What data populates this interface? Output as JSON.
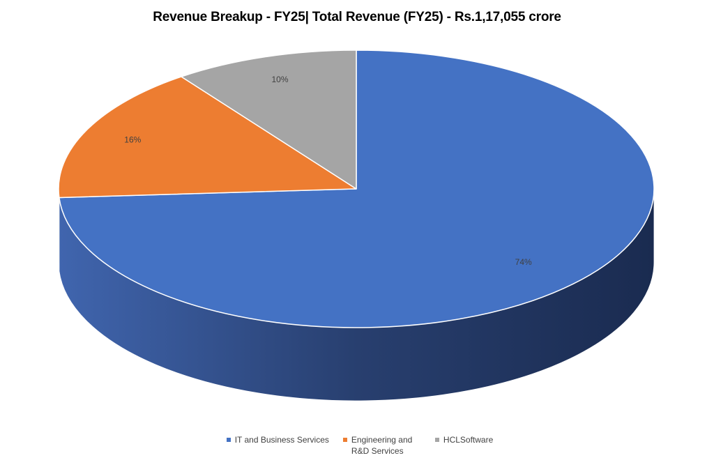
{
  "chart_data": {
    "type": "pie",
    "title": "Revenue Breakup - FY25| Total Revenue (FY25) - Rs.1,17,055 crore",
    "categories": [
      "IT and Business Services",
      "Engineering and R&D Services",
      "HCLSoftware"
    ],
    "values": [
      74,
      16,
      10
    ],
    "data_labels": [
      "74%",
      "16%",
      "10%"
    ],
    "colors": [
      "#4472C4",
      "#ED7D31",
      "#A5A5A5"
    ],
    "style": "3d",
    "legend_position": "bottom"
  }
}
